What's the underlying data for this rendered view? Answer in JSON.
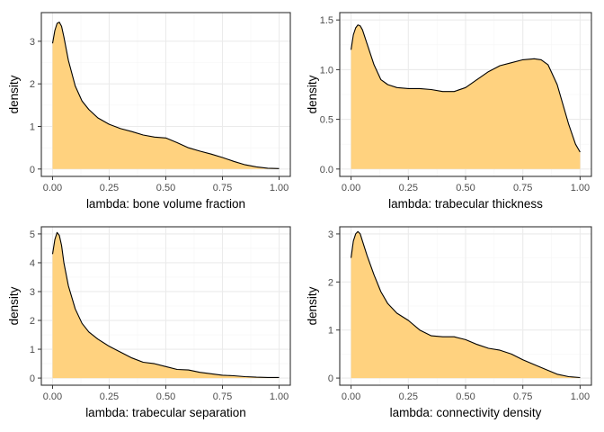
{
  "style": {
    "fill_color": "#FFD27F",
    "line_color": "#000000"
  },
  "chart_data": [
    {
      "type": "area",
      "xlabel": "lambda: bone volume fraction",
      "ylabel": "density",
      "xlim": [
        0,
        1
      ],
      "ylim": [
        0,
        3.5
      ],
      "xticks": [
        0,
        0.25,
        0.5,
        0.75,
        1
      ],
      "xtick_labels": [
        "0.00",
        "0.25",
        "0.50",
        "0.75",
        "1.00"
      ],
      "yticks": [
        0,
        1,
        2,
        3
      ],
      "ytick_labels": [
        "0",
        "1",
        "2",
        "3"
      ],
      "x": [
        0,
        0.01,
        0.02,
        0.03,
        0.04,
        0.05,
        0.07,
        0.1,
        0.13,
        0.16,
        0.2,
        0.25,
        0.3,
        0.35,
        0.4,
        0.45,
        0.5,
        0.55,
        0.6,
        0.65,
        0.7,
        0.75,
        0.8,
        0.85,
        0.9,
        0.95,
        1
      ],
      "y": [
        2.95,
        3.25,
        3.42,
        3.45,
        3.35,
        3.1,
        2.55,
        1.95,
        1.6,
        1.4,
        1.2,
        1.05,
        0.95,
        0.88,
        0.8,
        0.75,
        0.73,
        0.62,
        0.5,
        0.42,
        0.35,
        0.27,
        0.18,
        0.1,
        0.05,
        0.02,
        0.01
      ]
    },
    {
      "type": "area",
      "xlabel": "lambda: trabecular thickness",
      "ylabel": "density",
      "xlim": [
        0,
        1
      ],
      "ylim": [
        0,
        1.5
      ],
      "xticks": [
        0,
        0.25,
        0.5,
        0.75,
        1
      ],
      "xtick_labels": [
        "0.00",
        "0.25",
        "0.50",
        "0.75",
        "1.00"
      ],
      "yticks": [
        0,
        0.5,
        1,
        1.5
      ],
      "ytick_labels": [
        "0.0",
        "0.5",
        "1.0",
        "1.5"
      ],
      "x": [
        0,
        0.01,
        0.02,
        0.03,
        0.04,
        0.05,
        0.07,
        0.1,
        0.13,
        0.16,
        0.2,
        0.25,
        0.3,
        0.35,
        0.4,
        0.45,
        0.5,
        0.55,
        0.6,
        0.65,
        0.7,
        0.75,
        0.8,
        0.83,
        0.86,
        0.9,
        0.95,
        0.98,
        1
      ],
      "y": [
        1.2,
        1.35,
        1.42,
        1.45,
        1.44,
        1.4,
        1.26,
        1.05,
        0.9,
        0.85,
        0.82,
        0.81,
        0.81,
        0.8,
        0.78,
        0.78,
        0.82,
        0.9,
        0.98,
        1.04,
        1.07,
        1.1,
        1.11,
        1.1,
        1.05,
        0.85,
        0.45,
        0.25,
        0.17
      ]
    },
    {
      "type": "area",
      "xlabel": "lambda: trabecular separation",
      "ylabel": "density",
      "xlim": [
        0,
        1
      ],
      "ylim": [
        0,
        5
      ],
      "xticks": [
        0,
        0.25,
        0.5,
        0.75,
        1
      ],
      "xtick_labels": [
        "0.00",
        "0.25",
        "0.50",
        "0.75",
        "1.00"
      ],
      "yticks": [
        0,
        1,
        2,
        3,
        4,
        5
      ],
      "ytick_labels": [
        "0",
        "1",
        "2",
        "3",
        "4",
        "5"
      ],
      "x": [
        0,
        0.01,
        0.02,
        0.03,
        0.04,
        0.05,
        0.07,
        0.1,
        0.13,
        0.16,
        0.2,
        0.25,
        0.3,
        0.35,
        0.4,
        0.45,
        0.5,
        0.55,
        0.6,
        0.65,
        0.7,
        0.75,
        0.8,
        0.85,
        0.9,
        0.95,
        1
      ],
      "y": [
        4.3,
        4.8,
        5.05,
        4.95,
        4.6,
        4.0,
        3.2,
        2.4,
        1.9,
        1.6,
        1.35,
        1.1,
        0.9,
        0.7,
        0.55,
        0.5,
        0.4,
        0.3,
        0.28,
        0.2,
        0.15,
        0.1,
        0.08,
        0.05,
        0.03,
        0.02,
        0.02
      ]
    },
    {
      "type": "area",
      "xlabel": "lambda: connectivity density",
      "ylabel": "density",
      "xlim": [
        0,
        1
      ],
      "ylim": [
        0,
        3
      ],
      "xticks": [
        0,
        0.25,
        0.5,
        0.75,
        1
      ],
      "xtick_labels": [
        "0.00",
        "0.25",
        "0.50",
        "0.75",
        "1.00"
      ],
      "yticks": [
        0,
        1,
        2,
        3
      ],
      "ytick_labels": [
        "0",
        "1",
        "2",
        "3"
      ],
      "x": [
        0,
        0.01,
        0.02,
        0.03,
        0.04,
        0.05,
        0.07,
        0.1,
        0.13,
        0.16,
        0.2,
        0.25,
        0.3,
        0.35,
        0.4,
        0.45,
        0.5,
        0.55,
        0.6,
        0.65,
        0.7,
        0.75,
        0.8,
        0.85,
        0.9,
        0.95,
        1
      ],
      "y": [
        2.5,
        2.85,
        3.0,
        3.05,
        3.0,
        2.85,
        2.55,
        2.15,
        1.8,
        1.55,
        1.35,
        1.2,
        1.0,
        0.88,
        0.86,
        0.86,
        0.8,
        0.7,
        0.62,
        0.58,
        0.5,
        0.38,
        0.28,
        0.18,
        0.08,
        0.03,
        0.01
      ]
    }
  ]
}
